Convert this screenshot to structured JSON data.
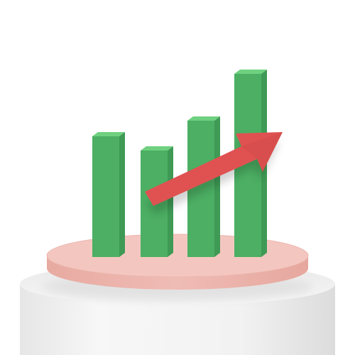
{
  "illustration": {
    "subject": "growth-bar-chart-with-upward-arrow-on-podium",
    "bars": [
      {
        "id": "bar-1",
        "relative_height": 0.76
      },
      {
        "id": "bar-2",
        "relative_height": 0.66
      },
      {
        "id": "bar-3",
        "relative_height": 0.86
      },
      {
        "id": "bar-4",
        "relative_height": 1.0
      }
    ],
    "arrow": {
      "direction": "up-right",
      "icon": "trend-up-arrow-icon"
    },
    "colors": {
      "background": "#ffffff",
      "bar_front": "#4caf63",
      "bar_side": "#3e9a55",
      "bar_top": "#6fd07f",
      "arrow": "#e05252",
      "podium_top": "#f2c8c2",
      "podium_side": "#e9b0a8",
      "pedestal": "#f1f1f1",
      "pedestal_shadow": "#d9d9d9"
    }
  }
}
